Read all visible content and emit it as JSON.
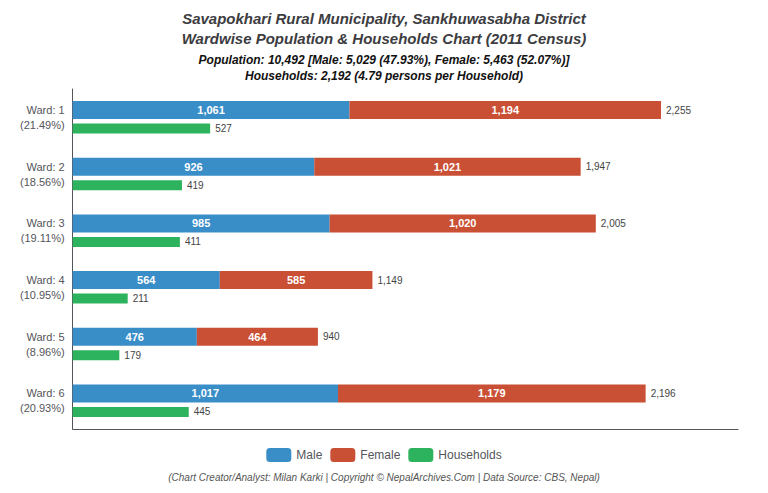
{
  "chart_data": {
    "type": "bar",
    "orientation": "horizontal",
    "title_lines": [
      "Savapokhari Rural Municipality, Sankhuwasabha District",
      "Wardwise Population & Households Chart (2011 Census)"
    ],
    "subtitle_lines": [
      "Population: 10,492 [Male: 5,029 (47.93%), Female: 5,463 (52.07%)]",
      "Households: 2,192 (4.79 persons per Household)"
    ],
    "footer": "(Chart Creator/Analyst: Milan Karki | Copyright © NepalArchives.Com | Data Source: CBS, Nepal)",
    "categories": [
      "Ward: 1",
      "Ward: 2",
      "Ward: 3",
      "Ward: 4",
      "Ward: 5",
      "Ward: 6"
    ],
    "category_shares": [
      "(21.49%)",
      "(18.56%)",
      "(19.11%)",
      "(10.95%)",
      "(8.96%)",
      "(20.93%)"
    ],
    "series": [
      {
        "name": "Male",
        "color": "#3a8ec8",
        "stacked": true,
        "values": [
          1061,
          926,
          985,
          564,
          476,
          1017
        ],
        "value_labels": [
          "1,061",
          "926",
          "985",
          "564",
          "476",
          "1,017"
        ]
      },
      {
        "name": "Female",
        "color": "#c94f35",
        "stacked": true,
        "values": [
          1194,
          1021,
          1020,
          585,
          464,
          1179
        ],
        "value_labels": [
          "1,194",
          "1,021",
          "1,020",
          "585",
          "464",
          "1,179"
        ]
      },
      {
        "name": "Households",
        "color": "#2db35d",
        "values": [
          527,
          419,
          411,
          211,
          179,
          445
        ]
      }
    ],
    "totals": {
      "values": [
        2255,
        1947,
        2005,
        1149,
        940,
        2196
      ],
      "value_labels": [
        "2,255",
        "1,947",
        "2,005",
        "1,149",
        "940",
        "2,196"
      ]
    },
    "xlim": [
      0,
      2550
    ],
    "tick_labels": false,
    "grid": false,
    "data_labels": true,
    "legend": "bottom"
  }
}
